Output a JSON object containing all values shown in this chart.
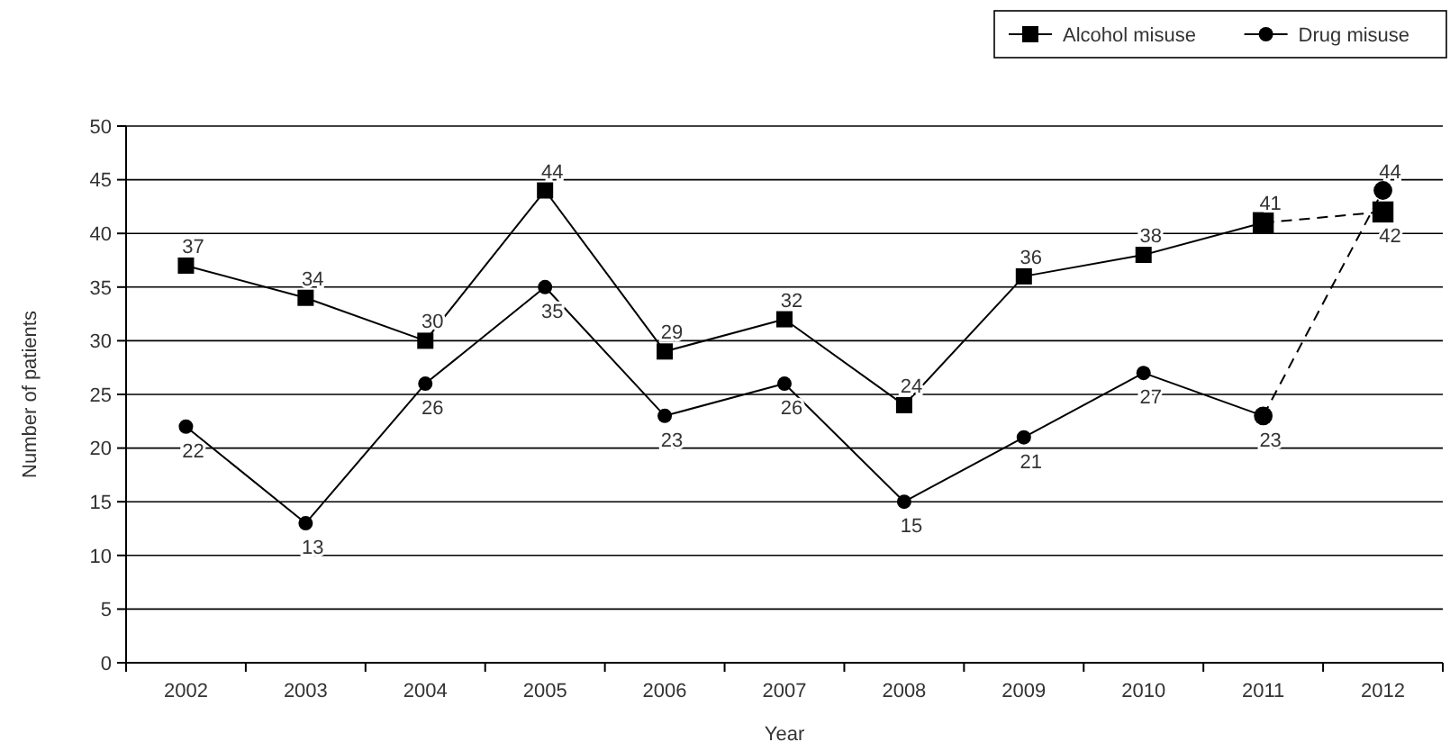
{
  "chart_data": {
    "type": "line",
    "xlabel": "Year",
    "ylabel": "Number of patients",
    "categories": [
      "2002",
      "2003",
      "2004",
      "2005",
      "2006",
      "2007",
      "2008",
      "2009",
      "2010",
      "2011",
      "2012"
    ],
    "series": [
      {
        "name": "Alcohol misuse",
        "color": "#000000",
        "marker": "square",
        "values": [
          37,
          34,
          30,
          44,
          29,
          32,
          24,
          36,
          38,
          41,
          null
        ]
      },
      {
        "name": "Drug misuse",
        "color": "#000000",
        "marker": "circle",
        "values": [
          22,
          13,
          26,
          35,
          23,
          26,
          15,
          21,
          27,
          23,
          null
        ]
      },
      {
        "type": "line",
        "color": "#000000",
        "marker": "square",
        "line_style": "dashed",
        "values": [
          null,
          null,
          null,
          null,
          null,
          null,
          null,
          null,
          null,
          41,
          42
        ],
        "value_labels": [
          null,
          null,
          null,
          null,
          null,
          null,
          null,
          null,
          null,
          null,
          "42"
        ]
      },
      {
        "type": "line",
        "color": "#000000",
        "marker": "circle",
        "line_style": "dashed",
        "values": [
          null,
          null,
          null,
          null,
          null,
          null,
          null,
          null,
          null,
          23,
          44
        ],
        "value_labels": [
          null,
          null,
          null,
          null,
          null,
          null,
          null,
          null,
          null,
          null,
          "44"
        ]
      }
    ],
    "ylim": [
      0,
      50
    ],
    "yticks": [
      0,
      5,
      10,
      15,
      20,
      25,
      30,
      35,
      40,
      45,
      50
    ],
    "grid": "y",
    "legend": "top right",
    "data_labels": true,
    "line_style": "solid"
  }
}
